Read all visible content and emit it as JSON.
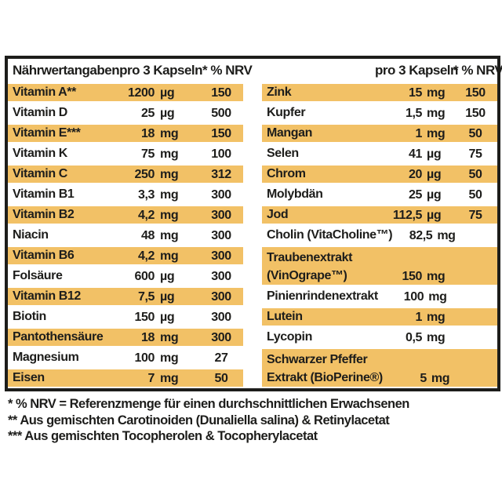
{
  "colors": {
    "highlight_row": "#f2c166",
    "border": "#1d1d1b",
    "background": "#ffffff"
  },
  "table": {
    "header": {
      "title": "Nährwertangaben",
      "per_serving": "pro 3 Kapseln",
      "nrv": "* % NRV"
    },
    "left_rows": [
      {
        "name": [
          "Vitamin A**"
        ],
        "value": "1200",
        "unit": "µg",
        "nrv": "150",
        "highlight": true
      },
      {
        "name": [
          "Vitamin D"
        ],
        "value": "25",
        "unit": "µg",
        "nrv": "500",
        "highlight": false
      },
      {
        "name": [
          "Vitamin E***"
        ],
        "value": "18",
        "unit": "mg",
        "nrv": "150",
        "highlight": true
      },
      {
        "name": [
          "Vitamin K"
        ],
        "value": "75",
        "unit": "mg",
        "nrv": "100",
        "highlight": false
      },
      {
        "name": [
          "Vitamin C"
        ],
        "value": "250",
        "unit": "mg",
        "nrv": "312",
        "highlight": true
      },
      {
        "name": [
          "Vitamin B1"
        ],
        "value": "3,3",
        "unit": "mg",
        "nrv": "300",
        "highlight": false
      },
      {
        "name": [
          "Vitamin B2"
        ],
        "value": "4,2",
        "unit": "mg",
        "nrv": "300",
        "highlight": true
      },
      {
        "name": [
          "Niacin"
        ],
        "value": "48",
        "unit": "mg",
        "nrv": "300",
        "highlight": false
      },
      {
        "name": [
          "Vitamin B6"
        ],
        "value": "4,2",
        "unit": "mg",
        "nrv": "300",
        "highlight": true
      },
      {
        "name": [
          "Folsäure"
        ],
        "value": "600",
        "unit": "µg",
        "nrv": "300",
        "highlight": false
      },
      {
        "name": [
          "Vitamin B12"
        ],
        "value": "7,5",
        "unit": "µg",
        "nrv": "300",
        "highlight": true
      },
      {
        "name": [
          "Biotin"
        ],
        "value": "150",
        "unit": "µg",
        "nrv": "300",
        "highlight": false
      },
      {
        "name": [
          "Pantothensäure"
        ],
        "value": "18",
        "unit": "mg",
        "nrv": "300",
        "highlight": true
      },
      {
        "name": [
          "Magnesium"
        ],
        "value": "100",
        "unit": "mg",
        "nrv": "27",
        "highlight": false
      },
      {
        "name": [
          "Eisen"
        ],
        "value": "7",
        "unit": "mg",
        "nrv": "50",
        "highlight": true
      }
    ],
    "right_rows": [
      {
        "name": [
          "Zink"
        ],
        "value": "15",
        "unit": "mg",
        "nrv": "150",
        "highlight": true
      },
      {
        "name": [
          "Kupfer"
        ],
        "value": "1,5",
        "unit": "mg",
        "nrv": "150",
        "highlight": false
      },
      {
        "name": [
          "Mangan"
        ],
        "value": "1",
        "unit": "mg",
        "nrv": "50",
        "highlight": true
      },
      {
        "name": [
          "Selen"
        ],
        "value": "41",
        "unit": "µg",
        "nrv": "75",
        "highlight": false
      },
      {
        "name": [
          "Chrom"
        ],
        "value": "20",
        "unit": "µg",
        "nrv": "50",
        "highlight": true
      },
      {
        "name": [
          "Molybdän"
        ],
        "value": "25",
        "unit": "µg",
        "nrv": "50",
        "highlight": false
      },
      {
        "name": [
          "Jod"
        ],
        "value": "112,5",
        "unit": "µg",
        "nrv": "75",
        "highlight": true
      },
      {
        "name": [
          "Cholin (VitaCholine™)"
        ],
        "value": "82,5",
        "unit": "mg",
        "nrv": "",
        "highlight": false
      },
      {
        "name": [
          "Traubenextrakt",
          "(VinOgrape™)"
        ],
        "value": "150",
        "unit": "mg",
        "nrv": "",
        "highlight": true
      },
      {
        "name": [
          "Pinienrindenextrakt"
        ],
        "value": "100",
        "unit": "mg",
        "nrv": "",
        "highlight": false
      },
      {
        "name": [
          "Lutein"
        ],
        "value": "1",
        "unit": "mg",
        "nrv": "",
        "highlight": true
      },
      {
        "name": [
          "Lycopin"
        ],
        "value": "0,5",
        "unit": "mg",
        "nrv": "",
        "highlight": false
      },
      {
        "name": [
          "Schwarzer Pfeffer",
          "Extrakt (BioPerine®)"
        ],
        "value": "5",
        "unit": "mg",
        "nrv": "",
        "highlight": true
      }
    ]
  },
  "footnotes": [
    "* % NRV = Referenzmenge für einen durchschnittlichen Erwachsenen",
    "** Aus gemischten Carotinoiden (Dunaliella salina) & Retinylacetat",
    "*** Aus gemischten Tocopherolen & Tocopherylacetat"
  ]
}
